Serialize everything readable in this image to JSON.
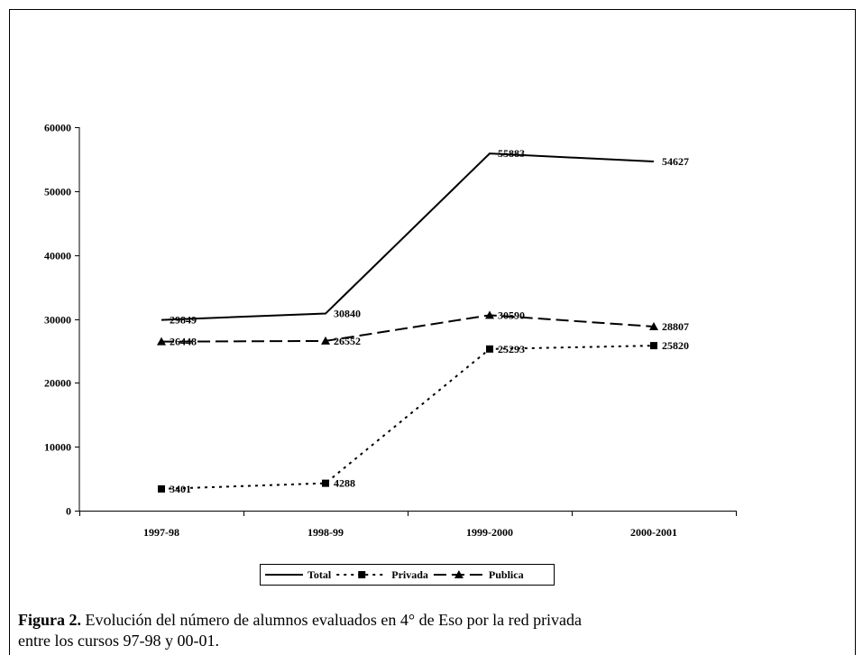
{
  "chart_data": {
    "type": "line",
    "categories": [
      "1997-98",
      "1998-99",
      "1999-2000",
      "2000-2001"
    ],
    "series": [
      {
        "name": "Total",
        "color": "#000000",
        "dash": "solid",
        "marker": "none",
        "values": [
          29849,
          30840,
          55883,
          54627
        ]
      },
      {
        "name": "Privada",
        "color": "#000000",
        "dash": "dotted",
        "marker": "square",
        "values": [
          3401,
          4288,
          25293,
          25820
        ]
      },
      {
        "name": "Publica",
        "color": "#000000",
        "dash": "dashed",
        "marker": "triangle",
        "values": [
          26448,
          26552,
          30590,
          28807
        ]
      }
    ],
    "ylim": [
      0,
      60000
    ],
    "yticks": [
      0,
      10000,
      20000,
      30000,
      40000,
      50000,
      60000
    ],
    "grid": false,
    "legend": "bottom",
    "data_labels": true
  },
  "caption": {
    "label": "Figura 2.",
    "lines": [
      "Evolución del número de alumnos evaluados en 4° de Eso por la red privada",
      "entre los cursos 97-98 y 00-01."
    ]
  }
}
